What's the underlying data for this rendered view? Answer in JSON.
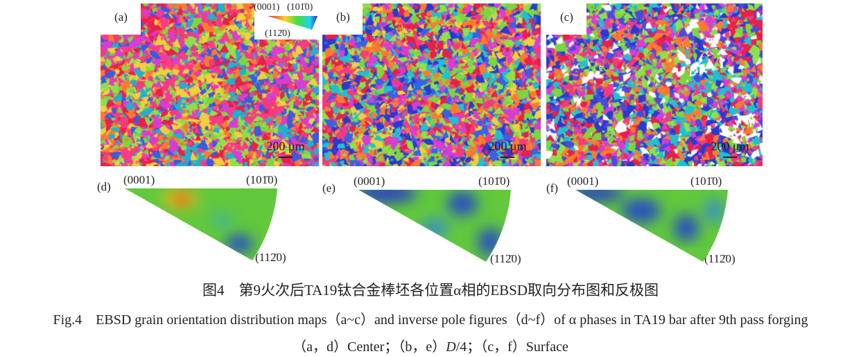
{
  "panels": [
    {
      "label": "(a)",
      "scale": "200 μm",
      "seed": 11,
      "palette": [
        "#e8204a",
        "#f23c7a",
        "#ff3a8a",
        "#d83cd8",
        "#7bd640",
        "#8fe04a",
        "#ff7a30",
        "#3a5ae0",
        "#20b0d0",
        "#f0d040"
      ]
    },
    {
      "label": "(b)",
      "scale": "200 μm",
      "seed": 23,
      "palette": [
        "#2a3ad0",
        "#3a60e8",
        "#7bd640",
        "#8fe04a",
        "#e8204a",
        "#ff7a30",
        "#f23c7a",
        "#d83cd8",
        "#20c0d0",
        "#f0d040"
      ]
    },
    {
      "label": "(c)",
      "scale": "200 μm",
      "seed": 37,
      "palette": [
        "#2a3ad0",
        "#4a4ae0",
        "#7bd640",
        "#ffffff",
        "#f23c7a",
        "#ff7a30",
        "#d83cd8",
        "#20c0d0",
        "#e8204a",
        "#8fe04a"
      ]
    }
  ],
  "legend": {
    "p0001": "(0001)",
    "p1010": "(101̄0)",
    "p1120": "(112̄0)"
  },
  "ipf": [
    {
      "label": "(d)",
      "p0001": "(0001)",
      "p1010": "(101̄0)",
      "p1120": "(112̄0)"
    },
    {
      "label": "(e)",
      "p0001": "(0001)",
      "p1010": "(101̄0)",
      "p1120": "(112̄0)"
    },
    {
      "label": "(f)",
      "p0001": "(0001)",
      "p1010": "(101̄0)",
      "p1120": "(112̄0)"
    }
  ],
  "caption": {
    "cn": "图4　第9火次后TA19钛合金棒坯各位置α相的EBSD取向分布图和反极图",
    "en1": "Fig.4　EBSD grain orientation distribution maps（a~c）and inverse pole figures（d~f）of α phases in TA19 bar after 9th pass forging",
    "en2_pre": "（a，d）Center；（b，e）",
    "en2_d": "D",
    "en2_post": "/4；（c，f）Surface"
  }
}
